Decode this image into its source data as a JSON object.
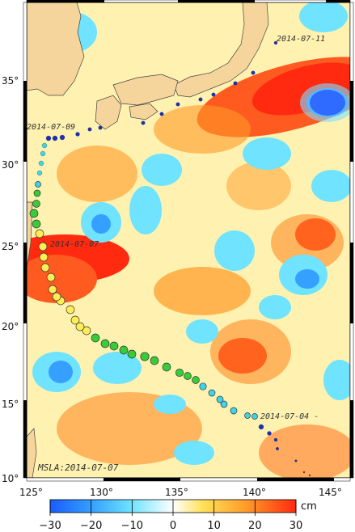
{
  "map": {
    "inset_label": "MSLA:2014-07-07",
    "lon_ticks": [
      "125°",
      "130°",
      "135°",
      "140°",
      "145°"
    ],
    "lat_ticks": [
      "35°",
      "30°",
      "25°",
      "20°",
      "15°",
      "10°"
    ],
    "date_labels": [
      "2014-07-11",
      "2014-07-09",
      "2014-07-07",
      "2014-07-04 -"
    ],
    "colors": {
      "land": "#f5d59c",
      "sea_neutral": "#fff6c0"
    }
  },
  "colorbar": {
    "unit": "cm",
    "ticks": [
      "−30",
      "−20",
      "−10",
      "0",
      "10",
      "20",
      "30"
    ],
    "range": [
      -30,
      30
    ],
    "colors": [
      "#1a5cff",
      "#35a0ff",
      "#6fe3ff",
      "#ffffff",
      "#ffe25a",
      "#ff9a28",
      "#ff2a10"
    ]
  },
  "track": {
    "marker_colors": [
      "#8b1a1a",
      "#1a2fbf",
      "#3fd3ee",
      "#38cc38",
      "#ffee55"
    ]
  }
}
